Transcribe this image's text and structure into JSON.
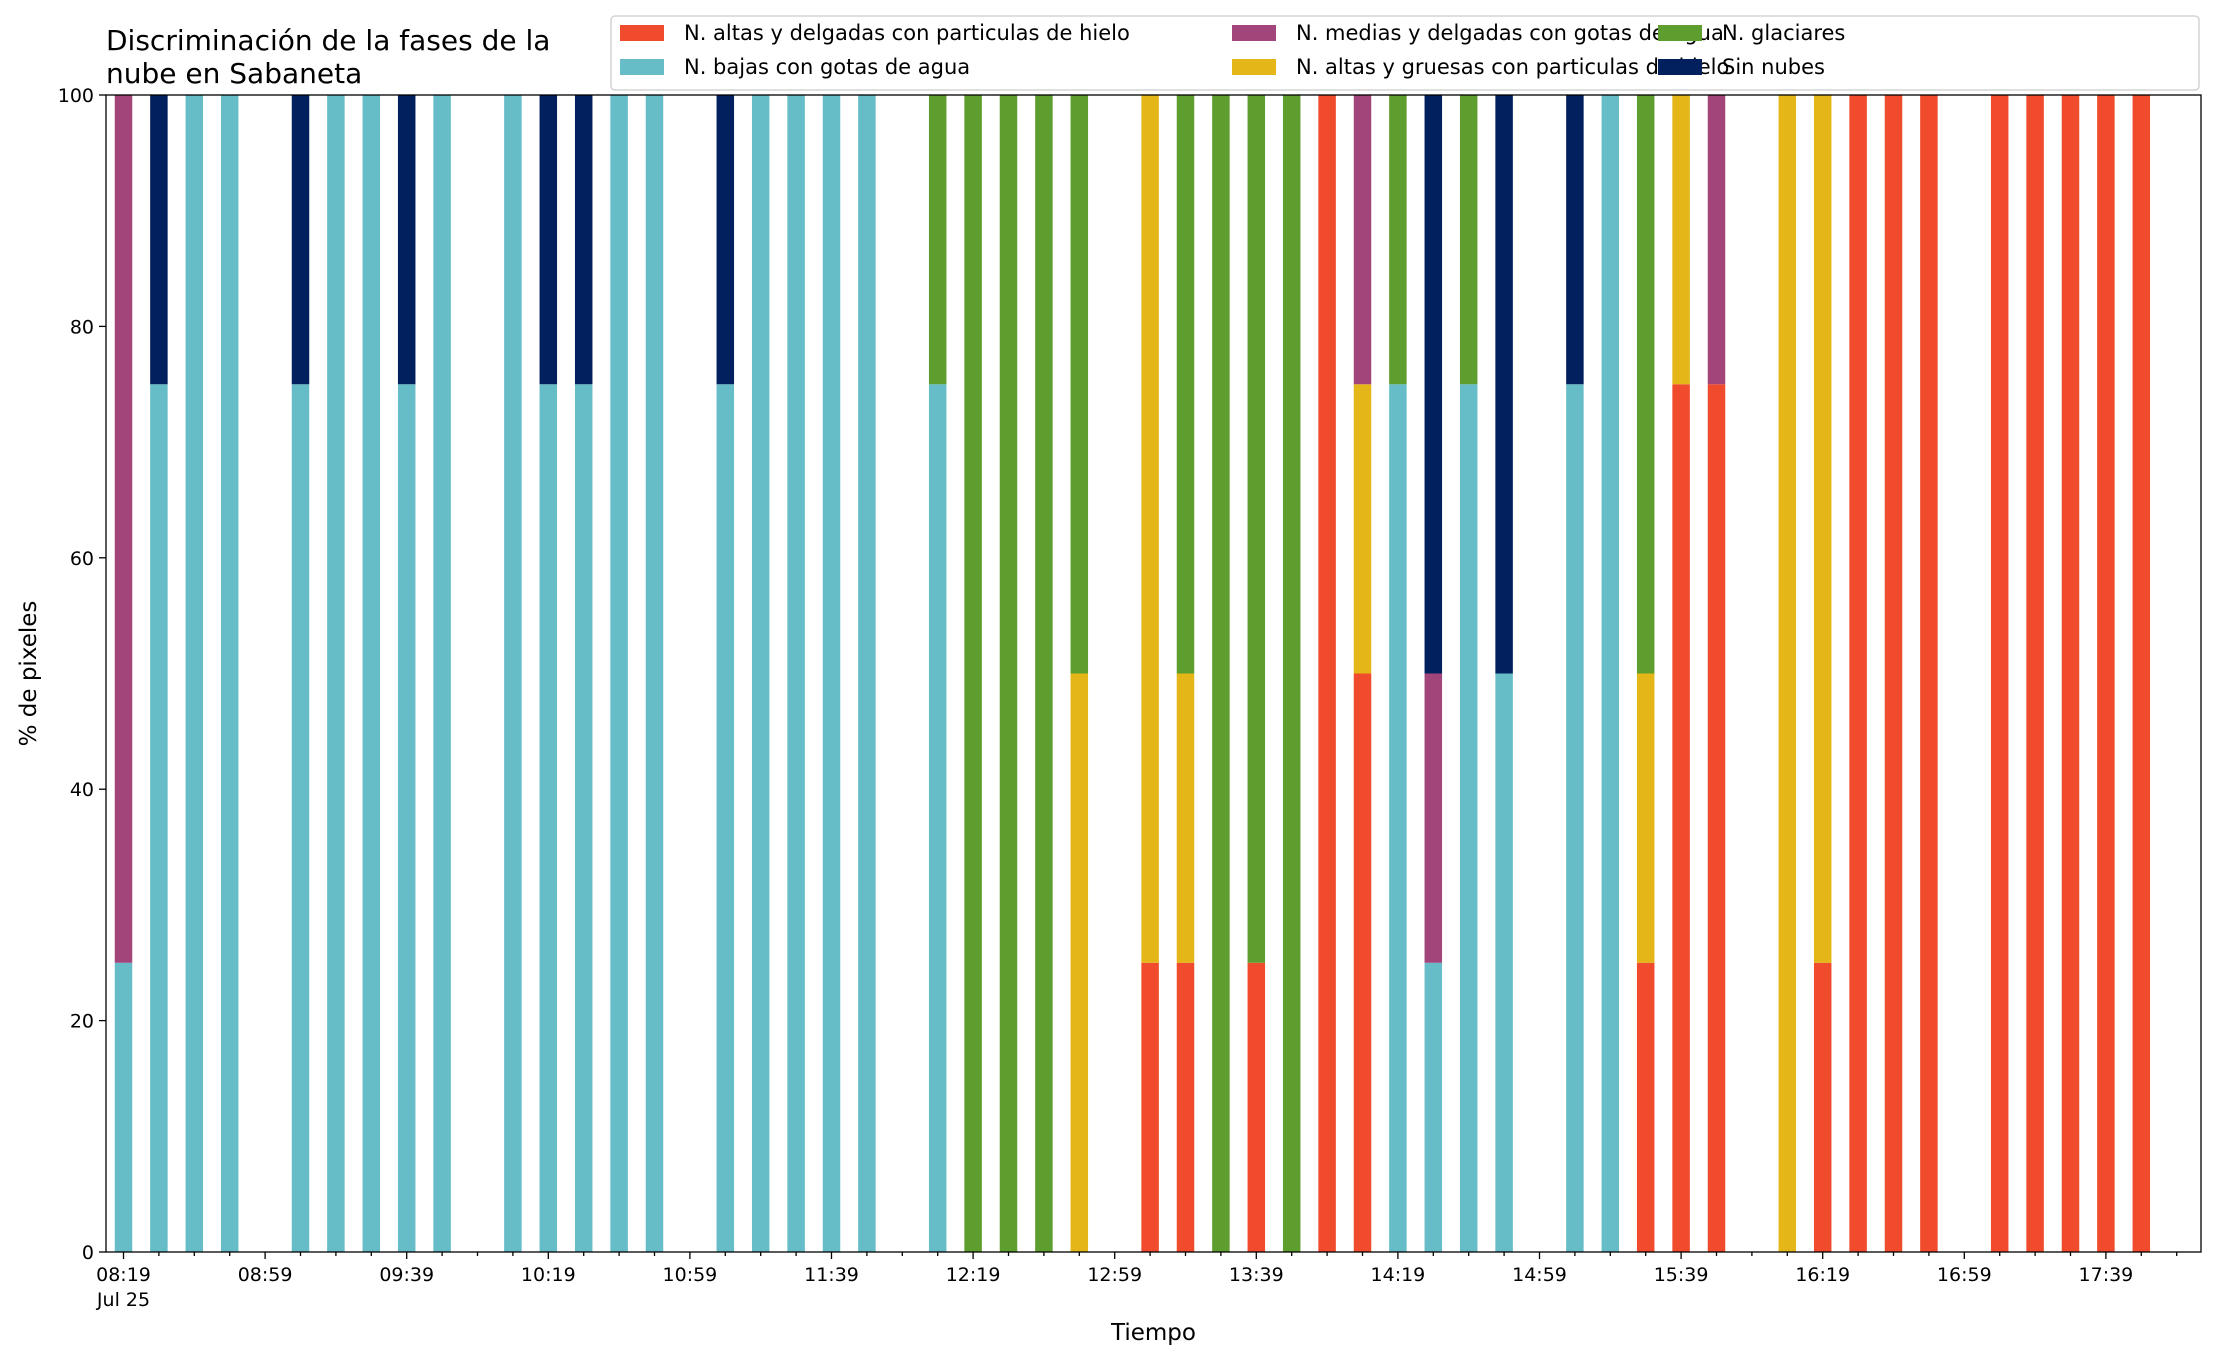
{
  "chart_data": {
    "type": "bar",
    "stacked": true,
    "title_lines": [
      "Discriminación de la fases de la",
      "nube en Sabaneta"
    ],
    "xlabel": "Tiempo",
    "ylabel": "% de pixeles",
    "ylim": [
      0,
      100
    ],
    "yticks": [
      0,
      20,
      40,
      60,
      80,
      100
    ],
    "x_slots": 59,
    "xtick_labels": [
      "08:19",
      "08:59",
      "09:39",
      "10:19",
      "10:59",
      "11:39",
      "12:19",
      "12:59",
      "13:39",
      "14:19",
      "14:59",
      "15:39",
      "16:19",
      "16:59",
      "17:39"
    ],
    "xtick_label_slots": [
      0,
      4,
      8,
      12,
      16,
      20,
      24,
      28,
      32,
      36,
      40,
      44,
      48,
      52,
      56
    ],
    "first_tick_sublabel": "Jul 25",
    "legend_placement": "top-right",
    "grid": false,
    "series": [
      {
        "name": "N. altas y delgadas con particulas de hielo",
        "color": "#f04b2c"
      },
      {
        "name": "N. altas y gruesas con particulas de hielo",
        "color": "#e4b617"
      },
      {
        "name": "N. bajas con gotas de agua",
        "color": "#66bdc8"
      },
      {
        "name": "N. glaciares",
        "color": "#5e9e2e"
      },
      {
        "name": "N. medias y delgadas con gotas de agua",
        "color": "#a2457b"
      },
      {
        "name": "Sin nubes",
        "color": "#02205e"
      }
    ],
    "legend_order": [
      0,
      2,
      4,
      1,
      3,
      5
    ],
    "bars": [
      {
        "slot": 0,
        "values": [
          0,
          0,
          25,
          0,
          75,
          0
        ]
      },
      {
        "slot": 1,
        "values": [
          0,
          0,
          75,
          0,
          0,
          25
        ]
      },
      {
        "slot": 2,
        "values": [
          0,
          0,
          100,
          0,
          0,
          0
        ]
      },
      {
        "slot": 3,
        "values": [
          0,
          0,
          100,
          0,
          0,
          0
        ]
      },
      {
        "slot": 5,
        "values": [
          0,
          0,
          75,
          0,
          0,
          25
        ]
      },
      {
        "slot": 6,
        "values": [
          0,
          0,
          100,
          0,
          0,
          0
        ]
      },
      {
        "slot": 7,
        "values": [
          0,
          0,
          100,
          0,
          0,
          0
        ]
      },
      {
        "slot": 8,
        "values": [
          0,
          0,
          75,
          0,
          0,
          25
        ]
      },
      {
        "slot": 9,
        "values": [
          0,
          0,
          100,
          0,
          0,
          0
        ]
      },
      {
        "slot": 11,
        "values": [
          0,
          0,
          100,
          0,
          0,
          0
        ]
      },
      {
        "slot": 12,
        "values": [
          0,
          0,
          75,
          0,
          0,
          25
        ]
      },
      {
        "slot": 13,
        "values": [
          0,
          0,
          75,
          0,
          0,
          25
        ]
      },
      {
        "slot": 14,
        "values": [
          0,
          0,
          100,
          0,
          0,
          0
        ]
      },
      {
        "slot": 15,
        "values": [
          0,
          0,
          100,
          0,
          0,
          0
        ]
      },
      {
        "slot": 17,
        "values": [
          0,
          0,
          75,
          0,
          0,
          25
        ]
      },
      {
        "slot": 18,
        "values": [
          0,
          0,
          100,
          0,
          0,
          0
        ]
      },
      {
        "slot": 19,
        "values": [
          0,
          0,
          100,
          0,
          0,
          0
        ]
      },
      {
        "slot": 20,
        "values": [
          0,
          0,
          100,
          0,
          0,
          0
        ]
      },
      {
        "slot": 21,
        "values": [
          0,
          0,
          100,
          0,
          0,
          0
        ]
      },
      {
        "slot": 23,
        "values": [
          0,
          0,
          75,
          25,
          0,
          0
        ]
      },
      {
        "slot": 24,
        "values": [
          0,
          0,
          0,
          100,
          0,
          0
        ]
      },
      {
        "slot": 25,
        "values": [
          0,
          0,
          0,
          100,
          0,
          0
        ]
      },
      {
        "slot": 26,
        "values": [
          0,
          0,
          0,
          100,
          0,
          0
        ]
      },
      {
        "slot": 27,
        "values": [
          0,
          50,
          0,
          50,
          0,
          0
        ]
      },
      {
        "slot": 29,
        "values": [
          25,
          75,
          0,
          0,
          0,
          0
        ]
      },
      {
        "slot": 30,
        "values": [
          25,
          25,
          0,
          50,
          0,
          0
        ]
      },
      {
        "slot": 31,
        "values": [
          0,
          0,
          0,
          100,
          0,
          0
        ]
      },
      {
        "slot": 32,
        "values": [
          25,
          0,
          0,
          75,
          0,
          0
        ]
      },
      {
        "slot": 33,
        "values": [
          0,
          0,
          0,
          100,
          0,
          0
        ]
      },
      {
        "slot": 34,
        "values": [
          100,
          0,
          0,
          0,
          0,
          0
        ]
      },
      {
        "slot": 35,
        "values": [
          50,
          25,
          0,
          0,
          25,
          0
        ]
      },
      {
        "slot": 36,
        "values": [
          0,
          0,
          75,
          25,
          0,
          0
        ]
      },
      {
        "slot": 37,
        "values": [
          0,
          0,
          25,
          0,
          25,
          50
        ]
      },
      {
        "slot": 38,
        "values": [
          0,
          0,
          75,
          25,
          0,
          0
        ]
      },
      {
        "slot": 39,
        "values": [
          0,
          0,
          50,
          0,
          0,
          50
        ]
      },
      {
        "slot": 41,
        "values": [
          0,
          0,
          75,
          0,
          0,
          25
        ]
      },
      {
        "slot": 42,
        "values": [
          0,
          0,
          100,
          0,
          0,
          0
        ]
      },
      {
        "slot": 43,
        "values": [
          25,
          25,
          0,
          50,
          0,
          0
        ]
      },
      {
        "slot": 44,
        "values": [
          75,
          25,
          0,
          0,
          0,
          0
        ]
      },
      {
        "slot": 45,
        "values": [
          75,
          0,
          0,
          0,
          25,
          0
        ]
      },
      {
        "slot": 47,
        "values": [
          0,
          100,
          0,
          0,
          0,
          0
        ]
      },
      {
        "slot": 48,
        "values": [
          25,
          75,
          0,
          0,
          0,
          0
        ]
      },
      {
        "slot": 49,
        "values": [
          100,
          0,
          0,
          0,
          0,
          0
        ]
      },
      {
        "slot": 50,
        "values": [
          100,
          0,
          0,
          0,
          0,
          0
        ]
      },
      {
        "slot": 51,
        "values": [
          100,
          0,
          0,
          0,
          0,
          0
        ]
      },
      {
        "slot": 53,
        "values": [
          100,
          0,
          0,
          0,
          0,
          0
        ]
      },
      {
        "slot": 54,
        "values": [
          100,
          0,
          0,
          0,
          0,
          0
        ]
      },
      {
        "slot": 55,
        "values": [
          100,
          0,
          0,
          0,
          0,
          0
        ]
      },
      {
        "slot": 56,
        "values": [
          100,
          0,
          0,
          0,
          0,
          0
        ]
      },
      {
        "slot": 57,
        "values": [
          100,
          0,
          0,
          0,
          0,
          0
        ]
      }
    ]
  }
}
